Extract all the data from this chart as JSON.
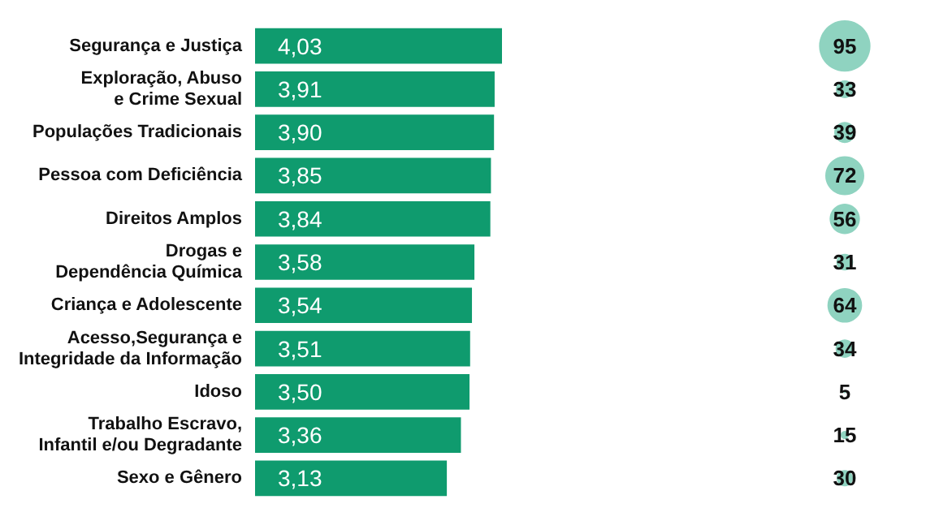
{
  "chart_data": [
    {
      "type": "bar",
      "orientation": "horizontal",
      "tick_labels": "y",
      "categories": [
        "Segurança e Justiça",
        "Exploração, Abuso\ne Crime Sexual",
        "Populações Tradicionais",
        "Pessoa com Deficiência",
        "Direitos Amplos",
        "Drogas e\nDependência Química",
        "Criança e Adolescente",
        "Acesso,Segurança e\nIntegridade da Informação",
        "Idoso",
        "Trabalho Escravo,\nInfantil e/ou Degradante",
        "Sexo e Gênero"
      ],
      "values": [
        4.03,
        3.91,
        3.9,
        3.85,
        3.84,
        3.58,
        3.54,
        3.51,
        3.5,
        3.36,
        3.13
      ],
      "value_labels": [
        "4,03",
        "3,91",
        "3,90",
        "3,85",
        "3,84",
        "3,58",
        "3,54",
        "3,51",
        "3,50",
        "3,36",
        "3,13"
      ],
      "color": "#0f9b6e"
    },
    {
      "type": "other",
      "data_labels": true,
      "color": "#8fd3c0",
      "categories": [
        null,
        null,
        null,
        null,
        null,
        null,
        null,
        null,
        null,
        null,
        null
      ],
      "values": [
        95,
        33,
        39,
        72,
        56,
        31,
        64,
        34,
        5,
        15,
        30
      ]
    }
  ]
}
